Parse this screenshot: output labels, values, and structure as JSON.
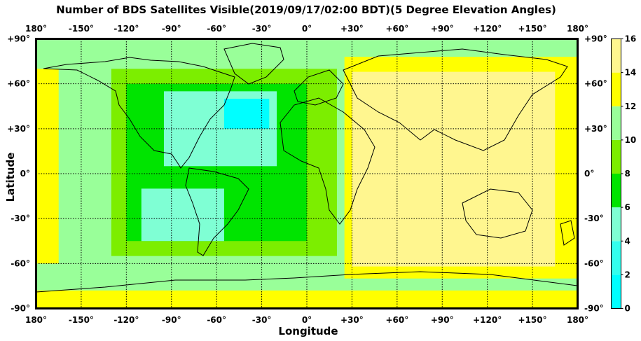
{
  "chart_data": {
    "type": "heatmap",
    "title": "Number of BDS Satellites Visible(2019/09/17/02:00 BDT)(5 Degree Elevation Angles)",
    "xlabel": "Longitude",
    "ylabel": "Latitude",
    "xlim": [
      -180,
      180
    ],
    "ylim": [
      -90,
      90
    ],
    "x_ticks": [
      "180°",
      "-150°",
      "-120°",
      "-90°",
      "-60°",
      "-30°",
      "0°",
      "+30°",
      "+60°",
      "+90°",
      "+120°",
      "+150°",
      "180°"
    ],
    "y_ticks": [
      "+90°",
      "+60°",
      "+30°",
      "0°",
      "-30°",
      "-60°",
      "-90°"
    ],
    "grid": true,
    "colorbar": {
      "ticks": [
        "0",
        "2",
        "4",
        "6",
        "8",
        "10",
        "12",
        "14",
        "16"
      ],
      "bins": [
        {
          "from": 0,
          "to": 2,
          "color": "#00ffff"
        },
        {
          "from": 2,
          "to": 4,
          "color": "#33ffee"
        },
        {
          "from": 4,
          "to": 6,
          "color": "#7fffd4"
        },
        {
          "from": 6,
          "to": 8,
          "color": "#00e400"
        },
        {
          "from": 8,
          "to": 10,
          "color": "#7cee00"
        },
        {
          "from": 10,
          "to": 12,
          "color": "#99ff99"
        },
        {
          "from": 12,
          "to": 14,
          "color": "#ffff00"
        },
        {
          "from": 14,
          "to": 16,
          "color": "#fff68f"
        }
      ]
    },
    "regions": [
      {
        "visible_satellites": "10-12",
        "lon": [
          -180,
          180
        ],
        "lat": [
          -90,
          90
        ],
        "description": "background"
      },
      {
        "visible_satellites": "12-14",
        "lon": [
          -180,
          -165
        ],
        "lat": [
          -60,
          70
        ]
      },
      {
        "visible_satellites": "12-14",
        "lon": [
          -180,
          180
        ],
        "lat": [
          -90,
          -78
        ]
      },
      {
        "visible_satellites": "12-14",
        "lon": [
          25,
          180
        ],
        "lat": [
          -70,
          78
        ]
      },
      {
        "visible_satellites": "14-16",
        "lon": [
          30,
          165
        ],
        "lat": [
          -62,
          68
        ]
      },
      {
        "visible_satellites": "8-10",
        "lon": [
          -130,
          20
        ],
        "lat": [
          -55,
          70
        ]
      },
      {
        "visible_satellites": "6-8",
        "lon": [
          -120,
          0
        ],
        "lat": [
          -45,
          60
        ]
      },
      {
        "visible_satellites": "4-6",
        "lon": [
          -95,
          -20
        ],
        "lat": [
          5,
          55
        ]
      },
      {
        "visible_satellites": "4-6",
        "lon": [
          -110,
          -55
        ],
        "lat": [
          -45,
          -10
        ]
      },
      {
        "visible_satellites": "0-2",
        "lon": [
          -55,
          -25
        ],
        "lat": [
          30,
          50
        ]
      }
    ]
  }
}
